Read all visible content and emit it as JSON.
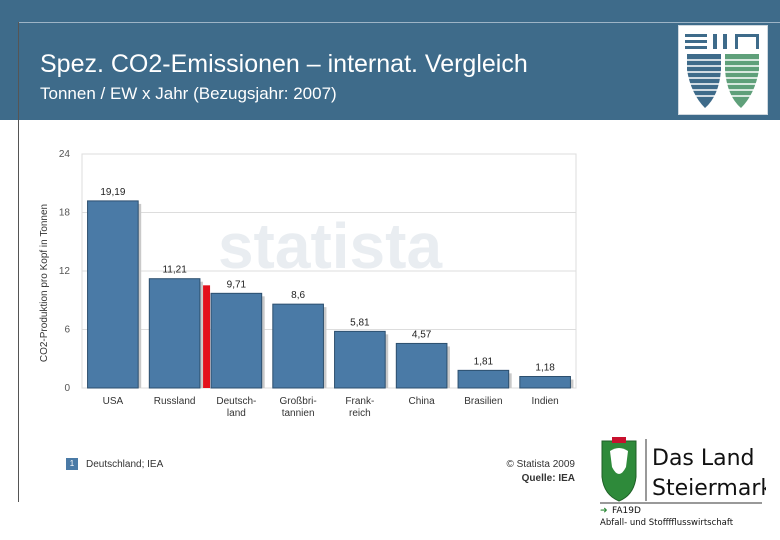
{
  "header": {
    "title": "Spez. CO2-Emissionen – internat. Vergleich",
    "subtitle": "Tonnen / EW x Jahr (Bezugsjahr: 2007)"
  },
  "chart_data": {
    "type": "bar",
    "ylabel": "CO2-Produktion pro Kopf in Tonnen",
    "ylim": [
      0,
      24
    ],
    "yticks": [
      0,
      6,
      12,
      18,
      24
    ],
    "categories": [
      [
        "USA"
      ],
      [
        "Russland"
      ],
      [
        "Deutsch-",
        "land"
      ],
      [
        "Großbri-",
        "tannien"
      ],
      [
        "Frank-",
        "reich"
      ],
      [
        "China"
      ],
      [
        "Brasilien"
      ],
      [
        "Indien"
      ]
    ],
    "values": [
      19.19,
      11.21,
      9.71,
      8.6,
      5.81,
      4.57,
      1.81,
      1.18
    ],
    "data_labels": [
      "19,19",
      "11,21",
      "9,71",
      "8,6",
      "5,81",
      "4,57",
      "1,81",
      "1,18"
    ],
    "highlight_index": 2,
    "colors": {
      "bar": "#4a7aa6",
      "bar_stroke": "#2c4f6e",
      "highlight": "#e3101b",
      "grid": "#dddddd"
    },
    "watermark": "statista",
    "grid": true
  },
  "footer": {
    "note_badge": "1",
    "note": "Deutschland; IEA",
    "copyright": "© Statista 2009",
    "source": "Quelle: IEA"
  },
  "logo_steiermark": {
    "line1": "Das Land",
    "line2": "Steiermark",
    "dept": "FA19D",
    "dept_full": "Abfall- und Stofffflusswirtschaft"
  }
}
